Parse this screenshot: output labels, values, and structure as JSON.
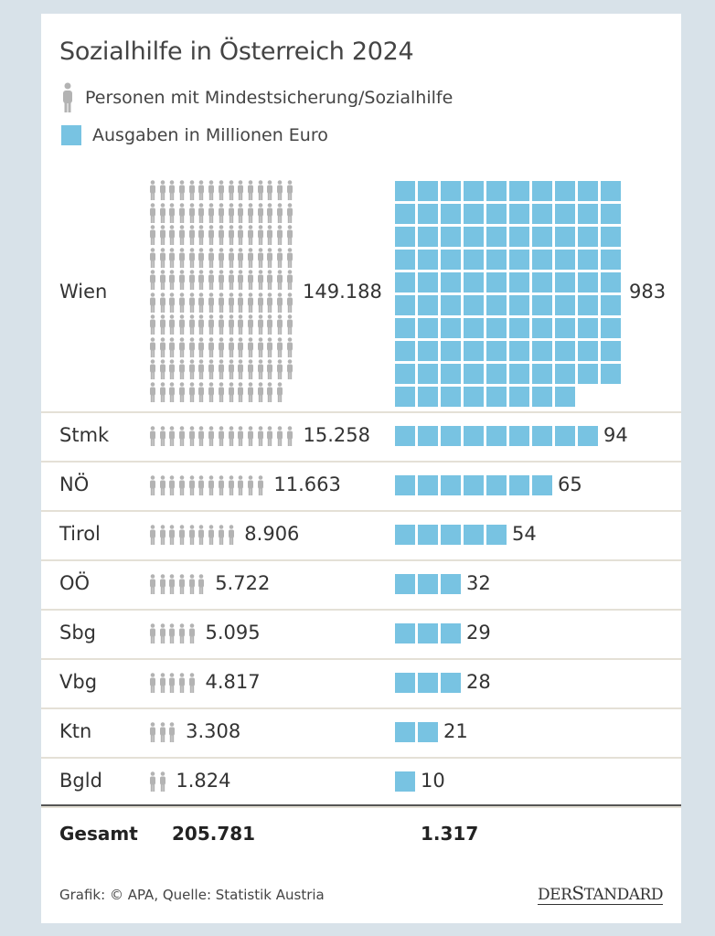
{
  "title": "Sozialhilfe in Österreich 2024",
  "legend": {
    "persons": "Personen mit Mindestsicherung/Sozialhilfe",
    "spending": "Ausgaben in Millionen Euro"
  },
  "colors": {
    "square": "#78c3e2",
    "person": "#b3b3b3"
  },
  "chart_data": {
    "type": "pictogram",
    "title": "Sozialhilfe in Österreich 2024",
    "units": {
      "person_icon": 1000,
      "square_icon": 10
    },
    "categories": [
      "Wien",
      "Stmk",
      "NÖ",
      "Tirol",
      "OÖ",
      "Sbg",
      "Vbg",
      "Ktn",
      "Bgld"
    ],
    "series": [
      {
        "name": "Personen mit Mindestsicherung/Sozialhilfe",
        "values": [
          149188,
          15258,
          11663,
          8906,
          5722,
          5095,
          4817,
          3308,
          1824
        ],
        "labels": [
          "149.188",
          "15.258",
          "11.663",
          "8.906",
          "5.722",
          "5.095",
          "4.817",
          "3.308",
          "1.824"
        ]
      },
      {
        "name": "Ausgaben in Millionen Euro",
        "values": [
          983,
          94,
          65,
          54,
          32,
          29,
          28,
          21,
          10
        ],
        "labels": [
          "983",
          "94",
          "65",
          "54",
          "32",
          "29",
          "28",
          "21",
          "10"
        ]
      }
    ]
  },
  "total": {
    "label": "Gesamt",
    "persons": "205.781",
    "spending": "1.317"
  },
  "footer": {
    "source": "Grafik: © APA, Quelle: Statistik Austria",
    "logo": "DERSTANDARD"
  }
}
